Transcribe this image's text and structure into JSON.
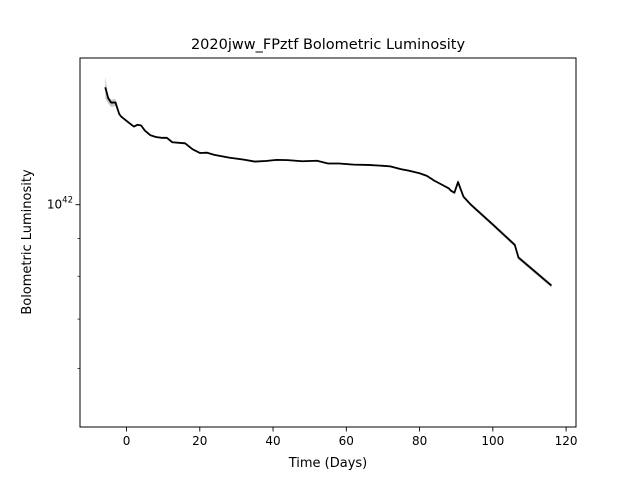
{
  "chart_data": {
    "type": "line",
    "title": "2020jww_FPztf Bolometric Luminosity",
    "xlabel": "Time (Days)",
    "ylabel": "Bolometric Luminosity",
    "xlim": [
      -12.7,
      122.7
    ],
    "xticks": [
      0,
      20,
      40,
      60,
      80,
      100,
      120
    ],
    "yscale": "log",
    "ylim": [
      5e+41,
      1.58e+42
    ],
    "yticks": [
      {
        "value": 1e+42,
        "base": "10",
        "exponent": "42"
      }
    ],
    "grid": false,
    "line_color": "#000000",
    "band_color": "#808080",
    "series": [
      {
        "x": [
          -5.8,
          -5.0,
          -4.2,
          -3.0,
          -2.0,
          -1.5,
          0.5,
          2.0,
          3.0,
          4.0,
          5.0,
          6.5,
          8.0,
          9.5,
          11.0,
          12.5,
          16.0,
          18.0,
          20.0,
          22.0,
          24.0,
          28.0,
          32.0,
          35.0,
          38.0,
          41.0,
          44.0,
          48.0,
          52.0,
          55.0,
          58.0,
          62.0,
          66.0,
          70.0,
          72.0,
          75.0,
          77.0,
          80.0,
          82.0,
          84.0,
          86.0,
          88.0,
          88.5,
          89.5,
          90.5,
          92.0,
          94.0,
          100.0,
          106.0,
          107.0,
          116.0
        ],
        "y": [
          1.442e+42,
          1.394e+42,
          1.375e+42,
          1.375e+42,
          1.327e+42,
          1.317e+42,
          1.293e+42,
          1.276e+42,
          1.283e+42,
          1.28e+42,
          1.26e+42,
          1.242e+42,
          1.235e+42,
          1.232e+42,
          1.232e+42,
          1.215e+42,
          1.211e+42,
          1.189e+42,
          1.175e+42,
          1.176e+42,
          1.168e+42,
          1.158e+42,
          1.151e+42,
          1.144e+42,
          1.146e+42,
          1.15e+42,
          1.149e+42,
          1.145e+42,
          1.147e+42,
          1.137e+42,
          1.137e+42,
          1.133e+42,
          1.132e+42,
          1.129e+42,
          1.127e+42,
          1.117e+42,
          1.112e+42,
          1.103e+42,
          1.094e+42,
          1.078e+42,
          1.065e+42,
          1.052e+42,
          1.045e+42,
          1.038e+42,
          1.073e+42,
          1.025e+42,
          1e+42,
          9.4e+41,
          8.82e+41,
          8.48e+41,
          7.77e+41
        ],
        "band_upper": [
          1.492e+42,
          1.404e+42,
          1.387e+42,
          1.39e+42,
          1.331e+42,
          1.32e+42,
          1.297e+42,
          1.28e+42,
          1.287e+42,
          1.283e+42,
          1.263e+42,
          1.246e+42,
          1.238e+42,
          1.235e+42,
          1.235e+42,
          1.218e+42,
          1.214e+42,
          1.192e+42,
          1.178e+42,
          1.179e+42,
          1.171e+42,
          1.161e+42,
          1.154e+42,
          1.147e+42,
          1.149e+42,
          1.153e+42,
          1.152e+42,
          1.148e+42,
          1.15e+42,
          1.14e+42,
          1.14e+42,
          1.136e+42,
          1.135e+42,
          1.132e+42,
          1.13e+42,
          1.12e+42,
          1.115e+42,
          1.106e+42,
          1.097e+42,
          1.081e+42,
          1.068e+42,
          1.055e+42,
          1.048e+42,
          1.041e+42,
          1.083e+42,
          1.03e+42,
          1.005e+42,
          9.45e+41,
          8.87e+41,
          8.53e+41,
          7.81e+41
        ],
        "band_lower": [
          1.395e+42,
          1.372e+42,
          1.356e+42,
          1.36e+42,
          1.322e+42,
          1.312e+42,
          1.288e+42,
          1.272e+42,
          1.278e+42,
          1.276e+42,
          1.256e+42,
          1.238e+42,
          1.231e+42,
          1.228e+42,
          1.228e+42,
          1.211e+42,
          1.207e+42,
          1.186e+42,
          1.172e+42,
          1.173e+42,
          1.165e+42,
          1.155e+42,
          1.148e+42,
          1.141e+42,
          1.143e+42,
          1.147e+42,
          1.146e+42,
          1.142e+42,
          1.144e+42,
          1.134e+42,
          1.134e+42,
          1.13e+42,
          1.129e+42,
          1.126e+42,
          1.124e+42,
          1.114e+42,
          1.109e+42,
          1.1e+42,
          1.091e+42,
          1.075e+42,
          1.062e+42,
          1.049e+42,
          1.042e+42,
          1.035e+42,
          1.063e+42,
          1.02e+42,
          9.95e+41,
          9.35e+41,
          8.77e+41,
          8.43e+41,
          7.72e+41
        ]
      }
    ]
  }
}
